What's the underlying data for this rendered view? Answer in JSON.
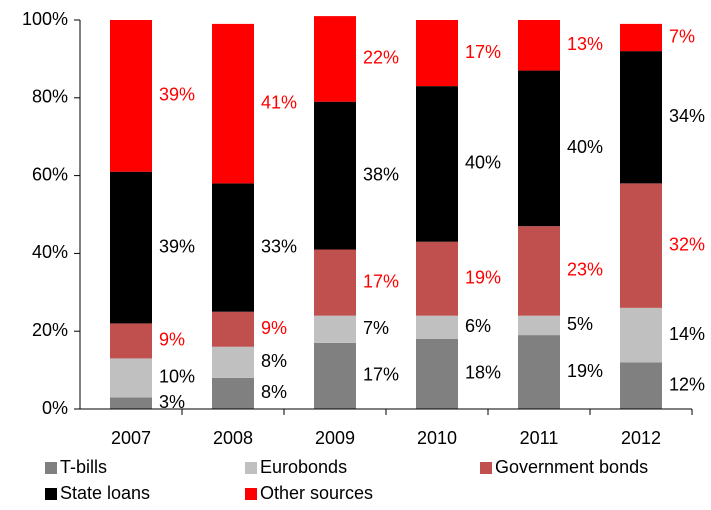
{
  "chart_data": {
    "type": "stacked_bar",
    "categories": [
      "2007",
      "2008",
      "2009",
      "2010",
      "2011",
      "2012"
    ],
    "series": [
      {
        "name": "T-bills",
        "color": "#808080",
        "label_color": "#000000",
        "values": [
          3,
          8,
          17,
          18,
          19,
          12
        ],
        "value_labels": [
          "3%",
          "8%",
          "17%",
          "18%",
          "19%",
          "12%"
        ]
      },
      {
        "name": "Eurobonds",
        "color": "#c0c0c0",
        "label_color": "#000000",
        "values": [
          10,
          8,
          7,
          6,
          5,
          14
        ],
        "value_labels": [
          "10%",
          "8%",
          "7%",
          "6%",
          "5%",
          "14%"
        ]
      },
      {
        "name": "Government bonds",
        "color": "#c0504d",
        "label_color": "#ff0000",
        "values": [
          9,
          9,
          17,
          19,
          23,
          32
        ],
        "value_labels": [
          "9%",
          "9%",
          "17%",
          "19%",
          "23%",
          "32%"
        ]
      },
      {
        "name": "State loans",
        "color": "#000000",
        "label_color": "#000000",
        "values": [
          39,
          33,
          38,
          40,
          40,
          34
        ],
        "value_labels": [
          "39%",
          "33%",
          "38%",
          "40%",
          "40%",
          "34%"
        ]
      },
      {
        "name": "Other sources",
        "color": "#ff0000",
        "label_color": "#ff0000",
        "values": [
          39,
          41,
          22,
          17,
          13,
          7
        ],
        "value_labels": [
          "39%",
          "41%",
          "22%",
          "17%",
          "13%",
          "7%"
        ]
      }
    ],
    "ylim": [
      0,
      100
    ],
    "yticks": [
      {
        "value": 0,
        "label": "0%"
      },
      {
        "value": 20,
        "label": "20%"
      },
      {
        "value": 40,
        "label": "40%"
      },
      {
        "value": 60,
        "label": "60%"
      },
      {
        "value": 80,
        "label": "80%"
      },
      {
        "value": 100,
        "label": "100%"
      }
    ]
  }
}
